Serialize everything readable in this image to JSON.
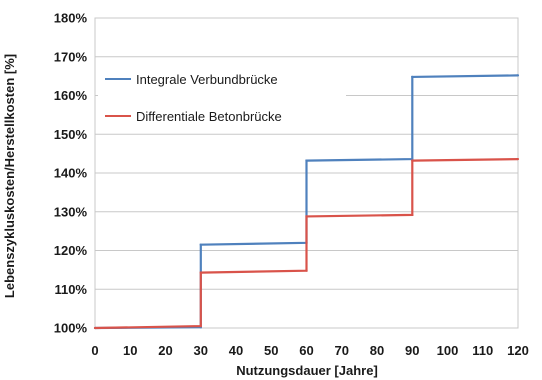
{
  "chart_data": {
    "type": "line",
    "step": true,
    "xlabel": "Nutzungsdauer [Jahre]",
    "ylabel": "Lebenszykluskosten/Herstellkosten [%]",
    "xlim": [
      0,
      120
    ],
    "ylim": [
      100,
      180
    ],
    "x_ticks": [
      "0",
      "10",
      "20",
      "30",
      "40",
      "50",
      "60",
      "70",
      "80",
      "90",
      "100",
      "110",
      "120"
    ],
    "y_ticks": [
      "100%",
      "110%",
      "120%",
      "130%",
      "140%",
      "150%",
      "160%",
      "170%",
      "180%"
    ],
    "grid": "horizontal",
    "legend_position": "top-left",
    "series": [
      {
        "name": "Integrale Verbundbrücke",
        "color": "#4f81bd",
        "x": [
          0,
          30,
          30,
          60,
          60,
          90,
          90,
          120
        ],
        "y": [
          100,
          100.2,
          121.5,
          122,
          143.2,
          143.6,
          164.8,
          165.2
        ]
      },
      {
        "name": "Differentiale Betonbrücke",
        "color": "#d9534a",
        "x": [
          0,
          30,
          30,
          60,
          60,
          90,
          90,
          120
        ],
        "y": [
          100,
          100.5,
          114.3,
          114.8,
          128.8,
          129.2,
          143.2,
          143.6
        ]
      }
    ]
  }
}
